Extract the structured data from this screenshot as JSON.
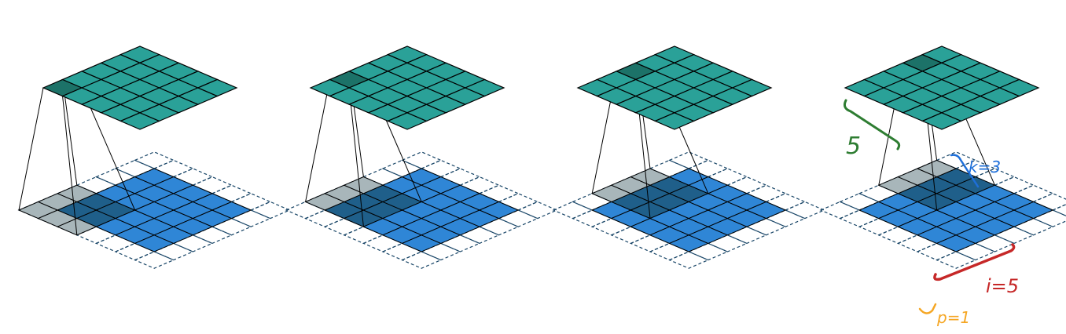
{
  "colors": {
    "output_fill": "#2aa198",
    "output_highlight": "#1c7268",
    "input_fill": "#2f86d6",
    "kernel_fill": "#a3b2b6",
    "kernel_overlap": "#1f5f8a",
    "padding_stroke": "#174466",
    "grid_stroke": "#000000",
    "annotation_output_size": "#2e7d32",
    "annotation_kernel": "#1e6fd9",
    "annotation_input": "#c62828",
    "annotation_padding": "#f5a623"
  },
  "panels": [
    {
      "step": 1,
      "output_cell": [
        0,
        0
      ],
      "kernel_origin": [
        0,
        0
      ]
    },
    {
      "step": 2,
      "output_cell": [
        0,
        1
      ],
      "kernel_origin": [
        0,
        1
      ]
    },
    {
      "step": 3,
      "output_cell": [
        0,
        2
      ],
      "kernel_origin": [
        0,
        2
      ]
    },
    {
      "step": 4,
      "output_cell": [
        0,
        3
      ],
      "kernel_origin": [
        0,
        3
      ]
    }
  ],
  "grid": {
    "output_size": 5,
    "input_size": 5,
    "padding": 1,
    "kernel_size": 3
  },
  "annotations": {
    "output_size": "5",
    "kernel_size": "k=3",
    "input_size": "i=5",
    "padding": "p=1"
  }
}
